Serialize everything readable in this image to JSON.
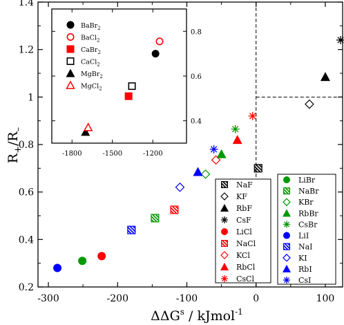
{
  "chart_data": [
    {
      "type": "scatter",
      "xlabel": "ΔΔG",
      "xlabel_sup": "s",
      "xlabel_unit": " / kJmol",
      "xlabel_unit_sup": "-1",
      "ylabel_main": "R",
      "ylabel_sub1": "+",
      "ylabel_mid": "/R",
      "ylabel_sub2": "–",
      "xlim": [
        -315,
        125
      ],
      "ylim": [
        0.2,
        1.4
      ],
      "xticks": [
        -300,
        -200,
        -100,
        0,
        100
      ],
      "yticks": [
        0.2,
        0.4,
        0.6,
        0.8,
        1.0,
        1.2,
        1.4
      ],
      "xtick_labels": [
        "-300",
        "-200",
        "-100",
        "0",
        "100"
      ],
      "ytick_labels": [
        "0.2",
        "0.4",
        "0.6",
        "0.8",
        "1",
        "1.2",
        "1.4"
      ],
      "reference_lines": {
        "x": 0,
        "y": 1.0
      },
      "series": [
        {
          "name": "NaF",
          "marker": "half-square",
          "color": "#000000",
          "x": [
            3
          ],
          "y": [
            0.7
          ]
        },
        {
          "name": "KF",
          "marker": "open-diamond",
          "color": "#000000",
          "x": [
            77
          ],
          "y": [
            0.97
          ]
        },
        {
          "name": "RbF",
          "marker": "filled-triangle",
          "color": "#000000",
          "x": [
            100
          ],
          "y": [
            1.085
          ]
        },
        {
          "name": "CsF",
          "marker": "star",
          "color": "#000000",
          "x": [
            122
          ],
          "y": [
            1.24
          ]
        },
        {
          "name": "LiCl",
          "marker": "filled-circle",
          "color": "#ff0000",
          "x": [
            -223
          ],
          "y": [
            0.33
          ]
        },
        {
          "name": "NaCl",
          "marker": "half-square",
          "color": "#ff0000",
          "x": [
            -118
          ],
          "y": [
            0.525
          ]
        },
        {
          "name": "KCl",
          "marker": "open-diamond",
          "color": "#ff0000",
          "x": [
            -58
          ],
          "y": [
            0.735
          ]
        },
        {
          "name": "RbCl",
          "marker": "filled-triangle",
          "color": "#ff0000",
          "x": [
            -27
          ],
          "y": [
            0.82
          ]
        },
        {
          "name": "CsCl",
          "marker": "star",
          "color": "#ff0000",
          "x": [
            -5
          ],
          "y": [
            0.92
          ]
        },
        {
          "name": "LiBr",
          "marker": "filled-circle",
          "color": "#009900",
          "x": [
            -251
          ],
          "y": [
            0.31
          ]
        },
        {
          "name": "NaBr",
          "marker": "half-square",
          "color": "#009900",
          "x": [
            -146
          ],
          "y": [
            0.49
          ]
        },
        {
          "name": "KBr",
          "marker": "open-diamond",
          "color": "#009900",
          "x": [
            -73
          ],
          "y": [
            0.675
          ]
        },
        {
          "name": "RbBr",
          "marker": "filled-triangle",
          "color": "#009900",
          "x": [
            -50
          ],
          "y": [
            0.76
          ]
        },
        {
          "name": "CsBr",
          "marker": "star",
          "color": "#009900",
          "x": [
            -30
          ],
          "y": [
            0.865
          ]
        },
        {
          "name": "LiI",
          "marker": "filled-circle",
          "color": "#0000ff",
          "x": [
            -287
          ],
          "y": [
            0.28
          ]
        },
        {
          "name": "NaI",
          "marker": "half-square",
          "color": "#0000ff",
          "x": [
            -180
          ],
          "y": [
            0.44
          ]
        },
        {
          "name": "KI",
          "marker": "open-diamond",
          "color": "#0000ff",
          "x": [
            -110
          ],
          "y": [
            0.62
          ]
        },
        {
          "name": "RbI",
          "marker": "filled-triangle",
          "color": "#0000ff",
          "x": [
            -84
          ],
          "y": [
            0.685
          ]
        },
        {
          "name": "CsI",
          "marker": "star",
          "color": "#0000ff",
          "x": [
            -61
          ],
          "y": [
            0.78
          ]
        }
      ],
      "legend_columns": [
        [
          "NaF",
          "KF",
          "RbF",
          "CsF",
          "LiCl",
          "NaCl",
          "KCl",
          "RbCl",
          "CsCl"
        ],
        [
          "LiBr",
          "NaBr",
          "KBr",
          "RbBr",
          "CsBr",
          "LiI",
          "NaI",
          "KI",
          "RbI",
          "CsI"
        ]
      ]
    },
    {
      "type": "scatter",
      "placement": "inset top-left",
      "xlim": [
        -1950,
        -950
      ],
      "ylim": [
        0.3,
        0.9
      ],
      "xticks": [
        -1800,
        -1500,
        -1200
      ],
      "yticks": [
        0.4,
        0.6,
        0.8
      ],
      "xtick_labels": [
        "-1800",
        "-1500",
        "-1200"
      ],
      "ytick_labels": [
        "0.4",
        "0.6",
        "0.8"
      ],
      "y_axis_side": "right",
      "series": [
        {
          "name": "BaBr",
          "sub": "2",
          "marker": "filled-circle",
          "color": "#000000",
          "x": [
            -1180
          ],
          "y": [
            0.7
          ]
        },
        {
          "name": "BaCl",
          "sub": "2",
          "marker": "open-circle",
          "color": "#ff0000",
          "x": [
            -1150
          ],
          "y": [
            0.755
          ]
        },
        {
          "name": "CaBr",
          "sub": "2",
          "marker": "filled-square",
          "color": "#ff0000",
          "x": [
            -1380
          ],
          "y": [
            0.51
          ]
        },
        {
          "name": "CaCl",
          "sub": "2",
          "marker": "open-square",
          "color": "#000000",
          "x": [
            -1355
          ],
          "y": [
            0.555
          ]
        },
        {
          "name": "MgBr",
          "sub": "2",
          "marker": "filled-triangle",
          "color": "#000000",
          "x": [
            -1700
          ],
          "y": [
            0.35
          ]
        },
        {
          "name": "MgCl",
          "sub": "2",
          "marker": "open-triangle",
          "color": "#ff0000",
          "x": [
            -1680
          ],
          "y": [
            0.37
          ]
        }
      ]
    }
  ]
}
